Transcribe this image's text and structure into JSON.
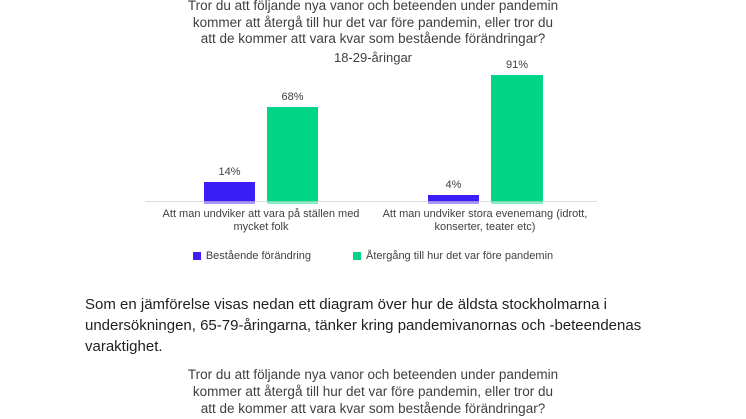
{
  "chart1": {
    "title": "Tror du att följande nya vanor och beteenden under pandemin\nkommer att återgå till hur det var före pandemin, eller tror du\natt de kommer att vara kvar som bestående förändringar?",
    "subtitle": "18-29-åringar",
    "category_labels": [
      "Att man undviker att vara på ställen med\nmycket folk",
      "Att man undviker stora evenemang (idrott,\nkonserter, teater etc)"
    ]
  },
  "chart_data": {
    "type": "bar",
    "title": "Tror du att följande nya vanor och beteenden under pandemin kommer att återgå till hur det var före pandemin, eller tror du att de kommer att vara kvar som bestående förändringar?",
    "subtitle": "18-29-åringar",
    "categories": [
      "Att man undviker att vara på ställen med mycket folk",
      "Att man undviker stora evenemang (idrott, konserter, teater etc)"
    ],
    "series": [
      {
        "name": "Bestående förändring",
        "color": "#3b1ef5",
        "values": [
          14,
          4
        ],
        "labels": [
          "14%",
          "4%"
        ]
      },
      {
        "name": "Återgång till hur det var före pandemin",
        "color": "#00d685",
        "values": [
          68,
          91
        ],
        "labels": [
          "68%",
          "91%"
        ]
      }
    ],
    "ylim": [
      0,
      100
    ],
    "unit": "%",
    "grid": false,
    "axis_line_color": "#dcdcdc",
    "legend_position": "bottom",
    "text_color": "#3f3f3f"
  },
  "paragraph": "Som en jämförelse visas nedan ett diagram över hur de äldsta stockholmarna i\nundersökningen, 65-79-åringarna, tänker kring pandemivanornas och -beteendenas\nvaraktighet.",
  "chart2": {
    "title": "Tror du att följande nya vanor och beteenden under pandemin\nkommer att återgå till hur det var före pandemin, eller tror du\natt de kommer att vara kvar som bestående förändringar?"
  }
}
